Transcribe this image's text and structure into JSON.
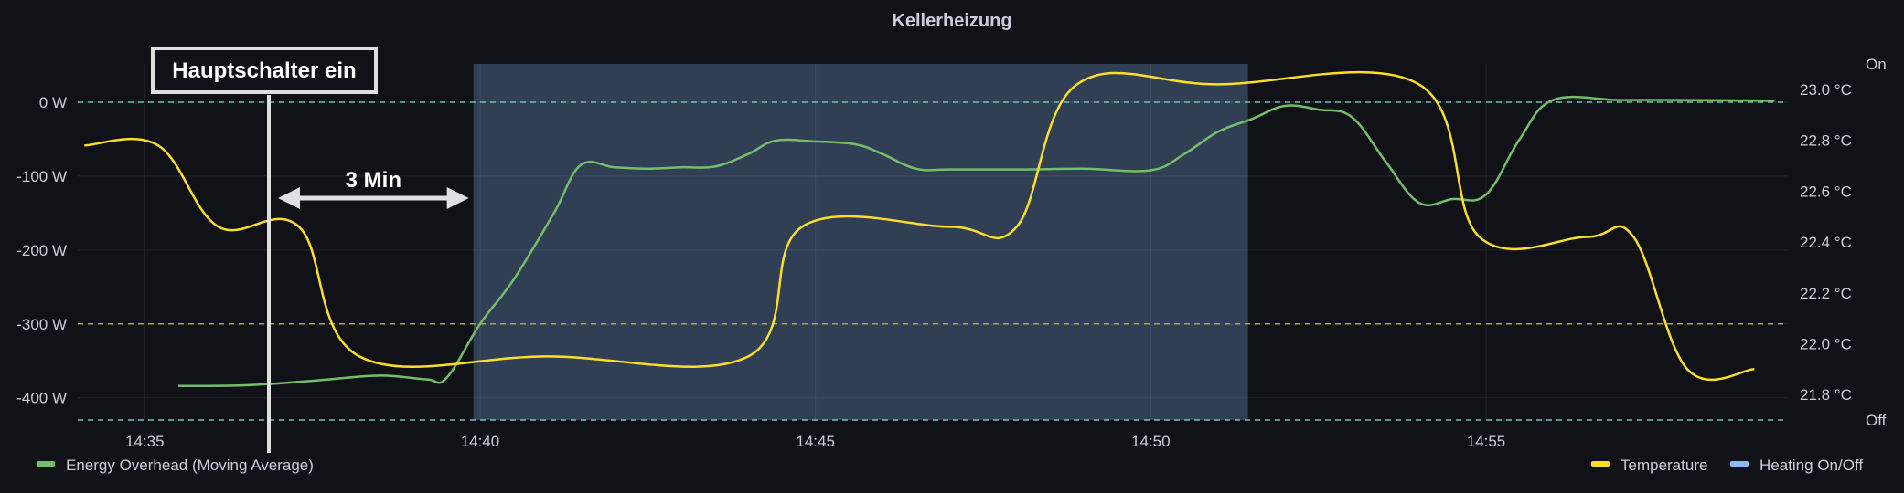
{
  "title": "Kellerheizung",
  "chart_data": {
    "type": "line",
    "x_axis": {
      "ticks": [
        "14:35",
        "14:40",
        "14:45",
        "14:50",
        "14:55"
      ],
      "tick_minutes": [
        35,
        40,
        45,
        50,
        55
      ],
      "range_minutes": [
        34,
        59.5
      ]
    },
    "y_left": {
      "unit": "W",
      "range": [
        -430,
        0
      ],
      "ticks": [
        "0 W",
        "-100 W",
        "-200 W",
        "-300 W",
        "-400 W"
      ],
      "tick_values": [
        0,
        -100,
        -200,
        -300,
        -400
      ]
    },
    "y_right": {
      "unit": "°C",
      "range": [
        21.7,
        23.0
      ],
      "ticks": [
        "23.0 °C",
        "22.8 °C",
        "22.6 °C",
        "22.4 °C",
        "22.2 °C",
        "22.0 °C",
        "21.8 °C"
      ],
      "tick_values": [
        23.0,
        22.8,
        22.6,
        22.4,
        22.2,
        22.0,
        21.8
      ]
    },
    "y_state": {
      "labels": [
        "On",
        "Off"
      ]
    },
    "thresholds": [
      {
        "axis": "left",
        "value": 0,
        "color": "#73BFB8"
      },
      {
        "axis": "left",
        "value": -300,
        "color": "#B8A045"
      },
      {
        "axis": "left",
        "value": -430,
        "color": "#73BFB8"
      }
    ],
    "series": [
      {
        "name": "Energy Overhead (Moving Average)",
        "axis": "left",
        "color": "#73BF69",
        "points": [
          [
            35.5,
            -384
          ],
          [
            36.5,
            -383
          ],
          [
            37.5,
            -377
          ],
          [
            38.5,
            -370
          ],
          [
            39.2,
            -375
          ],
          [
            39.5,
            -373
          ],
          [
            40.0,
            -300
          ],
          [
            40.5,
            -240
          ],
          [
            41.1,
            -150
          ],
          [
            41.5,
            -85
          ],
          [
            42.0,
            -88
          ],
          [
            42.5,
            -90
          ],
          [
            43.0,
            -88
          ],
          [
            43.5,
            -87
          ],
          [
            44.0,
            -70
          ],
          [
            44.4,
            -52
          ],
          [
            45.0,
            -53
          ],
          [
            45.6,
            -57
          ],
          [
            46.0,
            -70
          ],
          [
            46.5,
            -90
          ],
          [
            47.0,
            -91
          ],
          [
            48.0,
            -91
          ],
          [
            49.0,
            -90
          ],
          [
            50.0,
            -92
          ],
          [
            50.5,
            -70
          ],
          [
            51.0,
            -40
          ],
          [
            51.5,
            -23
          ],
          [
            52.0,
            -5
          ],
          [
            52.5,
            -10
          ],
          [
            53.0,
            -20
          ],
          [
            53.5,
            -80
          ],
          [
            54.0,
            -136
          ],
          [
            54.5,
            -131
          ],
          [
            55.0,
            -125
          ],
          [
            55.5,
            -50
          ],
          [
            56.0,
            3
          ],
          [
            57.0,
            3
          ],
          [
            58.0,
            3
          ],
          [
            59.3,
            2
          ]
        ]
      },
      {
        "name": "Temperature",
        "axis": "right",
        "color": "#FADE2A",
        "points": [
          [
            34.1,
            22.78
          ],
          [
            35.2,
            22.78
          ],
          [
            36.1,
            22.46
          ],
          [
            37.3,
            22.46
          ],
          [
            38.2,
            21.95
          ],
          [
            41.0,
            21.95
          ],
          [
            44.0,
            21.95
          ],
          [
            44.8,
            22.46
          ],
          [
            47.0,
            22.46
          ],
          [
            48.0,
            22.46
          ],
          [
            48.9,
            23.02
          ],
          [
            51.0,
            23.02
          ],
          [
            54.0,
            23.02
          ],
          [
            54.9,
            22.42
          ],
          [
            56.5,
            22.42
          ],
          [
            57.2,
            22.42
          ],
          [
            58.0,
            21.9
          ],
          [
            59.0,
            21.9
          ]
        ]
      },
      {
        "name": "Heating On/Off",
        "axis": "state",
        "color": "#8AB8FF",
        "points": []
      }
    ],
    "shaded_regions": [
      {
        "from_minute": 39.9,
        "to_minute": 51.45,
        "color": "#8AB8FF"
      }
    ],
    "annotations": {
      "marker_label": "Hauptschalter ein",
      "marker_minute": 36.85,
      "span_label": "3 Min",
      "span_from_minute": 36.85,
      "span_to_minute": 39.9
    },
    "legend": {
      "left": [
        {
          "name": "Energy Overhead (Moving Average)",
          "color": "#73BF69"
        }
      ],
      "right": [
        {
          "name": "Temperature",
          "color": "#FADE2A"
        },
        {
          "name": "Heating On/Off",
          "color": "#8AB8FF"
        }
      ],
      "placement": "bottom"
    }
  }
}
